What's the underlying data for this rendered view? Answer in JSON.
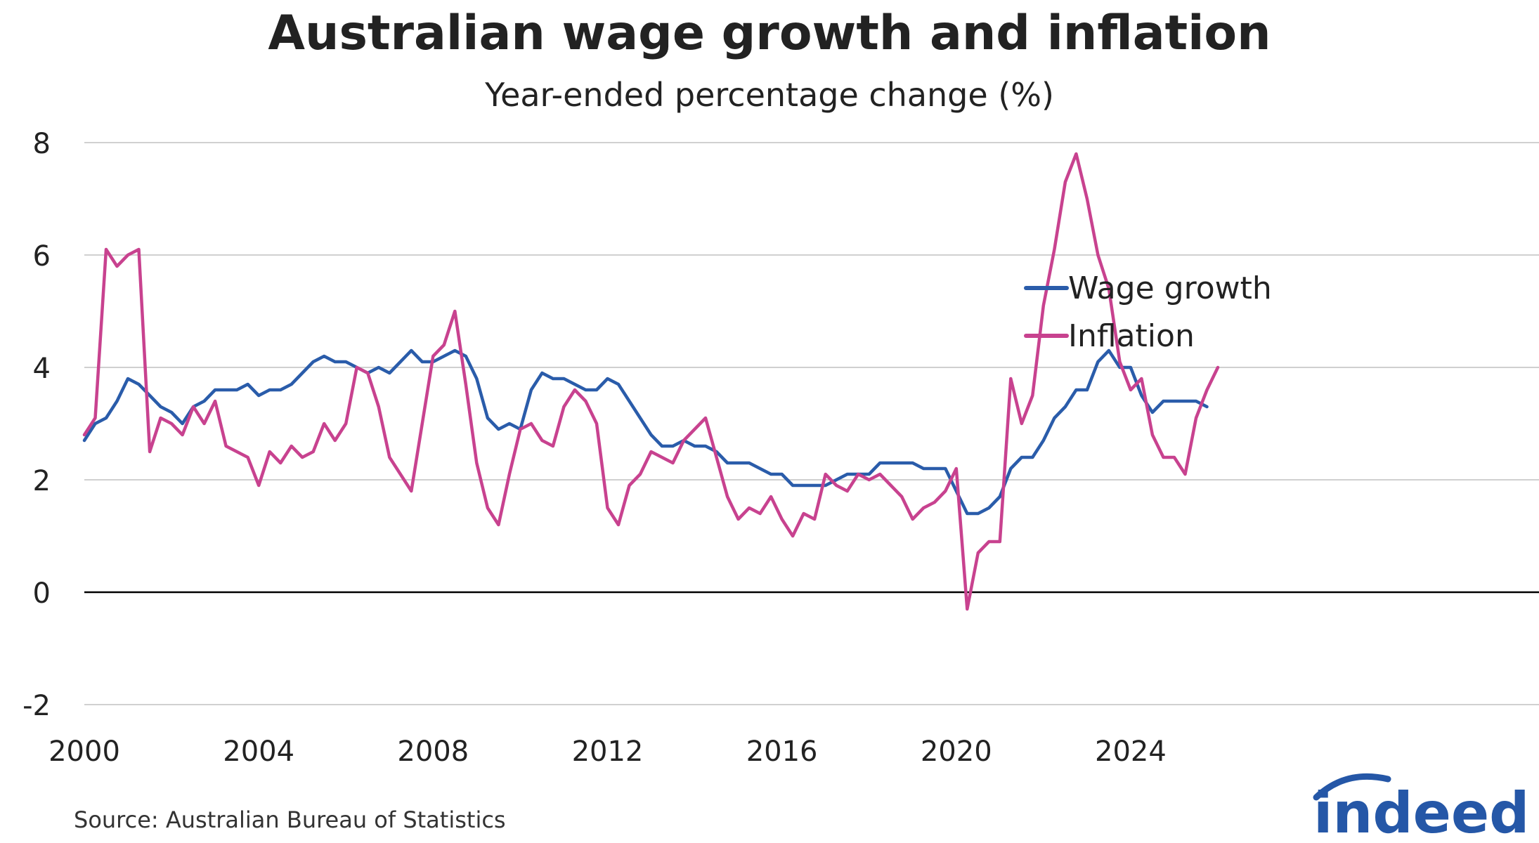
{
  "title": "Australian wage growth and inflation",
  "subtitle": "Year-ended percentage change (%)",
  "source": "Source: Australian Bureau of Statistics",
  "logo_text": "indeed",
  "colors": {
    "wage": "#2a5caa",
    "inflation": "#c8428f",
    "grid": "#d0d0d0",
    "zero": "#000000",
    "logo": "#2557a7"
  },
  "chart_data": {
    "type": "line",
    "title": "Australian wage growth and inflation",
    "subtitle": "Year-ended percentage change (%)",
    "xlabel": "",
    "ylabel": "",
    "xlim": [
      2000,
      2026.75
    ],
    "ylim": [
      -2,
      8
    ],
    "y_ticks": [
      -2,
      0,
      2,
      4,
      6,
      8
    ],
    "x_ticks": [
      2000,
      2004,
      2008,
      2012,
      2016,
      2020,
      2024
    ],
    "grid": true,
    "legend": "upper right, inside plot",
    "series": [
      {
        "name": "Wage growth",
        "color": "#2a5caa",
        "x_start": 2000,
        "x_step": 0.25,
        "values": [
          2.7,
          3.0,
          3.1,
          3.4,
          3.8,
          3.7,
          3.5,
          3.3,
          3.2,
          3.0,
          3.3,
          3.4,
          3.6,
          3.6,
          3.6,
          3.7,
          3.5,
          3.6,
          3.6,
          3.7,
          3.9,
          4.1,
          4.2,
          4.1,
          4.1,
          4.0,
          3.9,
          4.0,
          3.9,
          4.1,
          4.3,
          4.1,
          4.1,
          4.2,
          4.3,
          4.2,
          3.8,
          3.1,
          2.9,
          3.0,
          2.9,
          3.6,
          3.9,
          3.8,
          3.8,
          3.7,
          3.6,
          3.6,
          3.8,
          3.7,
          3.4,
          3.1,
          2.8,
          2.6,
          2.6,
          2.7,
          2.6,
          2.6,
          2.5,
          2.3,
          2.3,
          2.3,
          2.2,
          2.1,
          2.1,
          1.9,
          1.9,
          1.9,
          1.9,
          2.0,
          2.1,
          2.1,
          2.1,
          2.3,
          2.3,
          2.3,
          2.3,
          2.2,
          2.2,
          2.2,
          1.8,
          1.4,
          1.4,
          1.5,
          1.7,
          2.2,
          2.4,
          2.4,
          2.7,
          3.1,
          3.3,
          3.6,
          3.6,
          4.1,
          4.3,
          4.0,
          4.0,
          3.5,
          3.2,
          3.4,
          3.4,
          3.4,
          3.4,
          3.3
        ]
      },
      {
        "name": "Inflation",
        "color": "#c8428f",
        "x_start": 2000,
        "x_step": 0.25,
        "values": [
          2.8,
          3.1,
          6.1,
          5.8,
          6.0,
          6.1,
          2.5,
          3.1,
          3.0,
          2.8,
          3.3,
          3.0,
          3.4,
          2.6,
          2.5,
          2.4,
          1.9,
          2.5,
          2.3,
          2.6,
          2.4,
          2.5,
          3.0,
          2.7,
          3.0,
          4.0,
          3.9,
          3.3,
          2.4,
          2.1,
          1.8,
          3.0,
          4.2,
          4.4,
          5.0,
          3.7,
          2.3,
          1.5,
          1.2,
          2.1,
          2.9,
          3.0,
          2.7,
          2.6,
          3.3,
          3.6,
          3.4,
          3.0,
          1.5,
          1.2,
          1.9,
          2.1,
          2.5,
          2.4,
          2.3,
          2.7,
          2.9,
          3.1,
          2.4,
          1.7,
          1.3,
          1.5,
          1.4,
          1.7,
          1.3,
          1.0,
          1.4,
          1.3,
          2.1,
          1.9,
          1.8,
          2.1,
          2.0,
          2.1,
          1.9,
          1.7,
          1.3,
          1.5,
          1.6,
          1.8,
          2.2,
          -0.3,
          0.7,
          0.9,
          0.9,
          3.8,
          3.0,
          3.5,
          5.1,
          6.1,
          7.3,
          7.8,
          7.0,
          6.0,
          5.4,
          4.1,
          3.6,
          3.8,
          2.8,
          2.4,
          2.4,
          2.1,
          3.1,
          3.6,
          4.0
        ]
      }
    ]
  }
}
